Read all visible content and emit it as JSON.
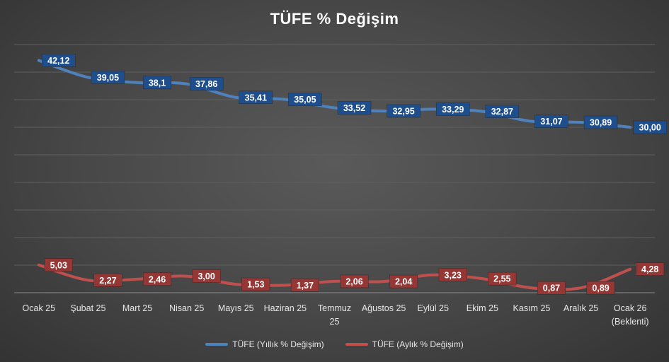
{
  "chart_data": {
    "type": "line",
    "title": "TÜFE % Değişim",
    "categories": [
      [
        "Ocak 25"
      ],
      [
        "Şubat 25"
      ],
      [
        "Mart 25"
      ],
      [
        "Nisan 25"
      ],
      [
        "Mayıs 25"
      ],
      [
        "Haziran 25"
      ],
      [
        "Temmuz",
        "25"
      ],
      [
        "Ağustos 25"
      ],
      [
        "Eylül 25"
      ],
      [
        "Ekim 25"
      ],
      [
        "Kasım 25"
      ],
      [
        "Aralık 25"
      ],
      [
        "Ocak 26",
        "(Beklenti)"
      ]
    ],
    "series": [
      {
        "name": "TÜFE (Yıllık % Değişim)",
        "color": "#4f81bd",
        "label_bg": "#1f4e8c",
        "values": [
          42.12,
          39.05,
          38.1,
          37.86,
          35.41,
          35.05,
          33.52,
          32.95,
          33.29,
          32.87,
          31.07,
          30.89,
          30.0
        ],
        "labels": [
          "42,12",
          "39,05",
          "38,1",
          "37,86",
          "35,41",
          "35,05",
          "33,52",
          "32,95",
          "33,29",
          "32,87",
          "31,07",
          "30,89",
          "30,00"
        ]
      },
      {
        "name": "TÜFE (Aylık % Değişim)",
        "color": "#c0504d",
        "label_bg": "#953735",
        "values": [
          5.03,
          2.27,
          2.46,
          3.0,
          1.53,
          1.37,
          2.06,
          2.04,
          3.23,
          2.55,
          0.87,
          0.89,
          4.28
        ],
        "labels": [
          "5,03",
          "2,27",
          "2,46",
          "3,00",
          "1,53",
          "1,37",
          "2,06",
          "2,04",
          "3,23",
          "2,55",
          "0,87",
          "0,89",
          "4,28"
        ]
      }
    ],
    "ylim": [
      0,
      45
    ],
    "grid": true,
    "legend_position": "bottom"
  }
}
